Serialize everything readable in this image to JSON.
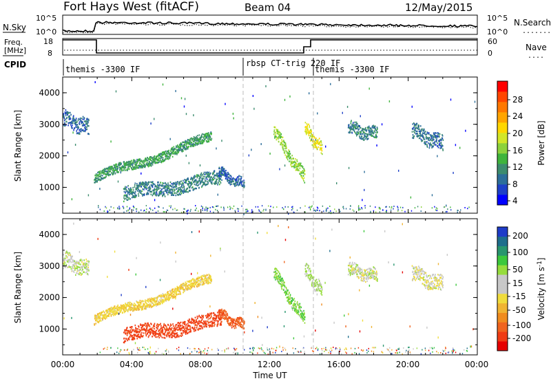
{
  "header": {
    "station": "Fort Hays West (fitACF)",
    "beam": "Beam 04",
    "date": "12/May/2015"
  },
  "top_panel": {
    "left_label": "N.Sky",
    "left_ticks": [
      "10^5",
      "10^0"
    ],
    "right_ticks": [
      "10^5",
      "10^0"
    ],
    "right_label": "N.Search",
    "right_legend_line": "........"
  },
  "freq_panel": {
    "label_line1": "Freq.",
    "label_line2": "[MHz]",
    "left_ticks": [
      "18",
      "8"
    ],
    "right_ticks": [
      "60",
      "0"
    ],
    "right_label": "Nave",
    "right_legend_line": "...."
  },
  "cpid": {
    "label": "CPID",
    "segments": [
      {
        "start_hour": 0.0,
        "end_hour": 10.5,
        "name": "themis -3300 IF"
      },
      {
        "start_hour": 10.5,
        "end_hour": 14.5,
        "name": "rbsp CT-trig 220 IF"
      },
      {
        "start_hour": 14.5,
        "end_hour": 24.0,
        "name": "themis -3300 IF"
      }
    ]
  },
  "axes": {
    "ylabel": "Slant Range [km]",
    "yticks": [
      "4000",
      "3000",
      "2000",
      "1000"
    ],
    "xlabel": "Time UT",
    "xticks": [
      "00:00",
      "04:00",
      "08:00",
      "12:00",
      "16:00",
      "20:00",
      "00:00"
    ]
  },
  "colorbars": {
    "power": {
      "label": "Power [dB]",
      "ticks": [
        "28",
        "24",
        "20",
        "16",
        "12",
        "8",
        "4"
      ],
      "colors": [
        "#0000ff",
        "#1e40c8",
        "#2c6e9a",
        "#3c8c6e",
        "#3fb43c",
        "#8cd23c",
        "#d2e628",
        "#ffd700",
        "#ffa500",
        "#ff7800",
        "#ff4600",
        "#ff0000"
      ]
    },
    "velocity": {
      "label": "Velocity [m s^-1]",
      "ticks": [
        "200",
        "100",
        "50",
        "15",
        "-15",
        "-50",
        "-100",
        "-200"
      ],
      "colors": [
        "#1e3cc8",
        "#1e6e8c",
        "#28966e",
        "#3cc83c",
        "#96dc3c",
        "#c8c8c8",
        "#c8c8c8",
        "#f0dc3c",
        "#f0b432",
        "#f08c1e",
        "#f0641e",
        "#f03c14",
        "#e60000"
      ]
    }
  },
  "chart_data": {
    "type": "heatmap",
    "title": "Fort Hays West (fitACF) Beam 04 12/May/2015",
    "xlabel": "Time UT",
    "ylabel": "Slant Range [km]",
    "xlim_hours": [
      0,
      24
    ],
    "ylim_km": [
      180,
      4500
    ],
    "panels": [
      "Power [dB]",
      "Velocity [m s^-1]"
    ],
    "echo_regions": [
      {
        "t0": 0.0,
        "t1": 1.5,
        "r_center_start": 3200,
        "r_center_end": 2900,
        "width": 500,
        "power": 6,
        "velocity": 5
      },
      {
        "t0": 1.8,
        "t1": 8.6,
        "r_center_start": 1300,
        "r_center_end": 2600,
        "width": 300,
        "power": 10,
        "velocity": -40
      },
      {
        "t0": 3.5,
        "t1": 9.2,
        "r_center_start": 800,
        "r_center_end": 1300,
        "width": 450,
        "power": 8,
        "velocity": -170
      },
      {
        "t0": 9.0,
        "t1": 10.5,
        "r_center_start": 1500,
        "r_center_end": 1100,
        "width": 300,
        "power": 6,
        "velocity": -130
      },
      {
        "t0": 12.2,
        "t1": 14.0,
        "r_center_start": 2800,
        "r_center_end": 1300,
        "width": 400,
        "power": 14,
        "velocity": 40
      },
      {
        "t0": 14.0,
        "t1": 15.0,
        "r_center_start": 2900,
        "r_center_end": 2200,
        "width": 400,
        "power": 18,
        "velocity": 20
      },
      {
        "t0": 16.5,
        "t1": 18.2,
        "r_center_start": 2900,
        "r_center_end": 2700,
        "width": 400,
        "power": 8,
        "velocity": 0
      },
      {
        "t0": 20.2,
        "t1": 22.0,
        "r_center_start": 2800,
        "r_center_end": 2400,
        "width": 500,
        "power": 7,
        "velocity": -10
      }
    ]
  }
}
